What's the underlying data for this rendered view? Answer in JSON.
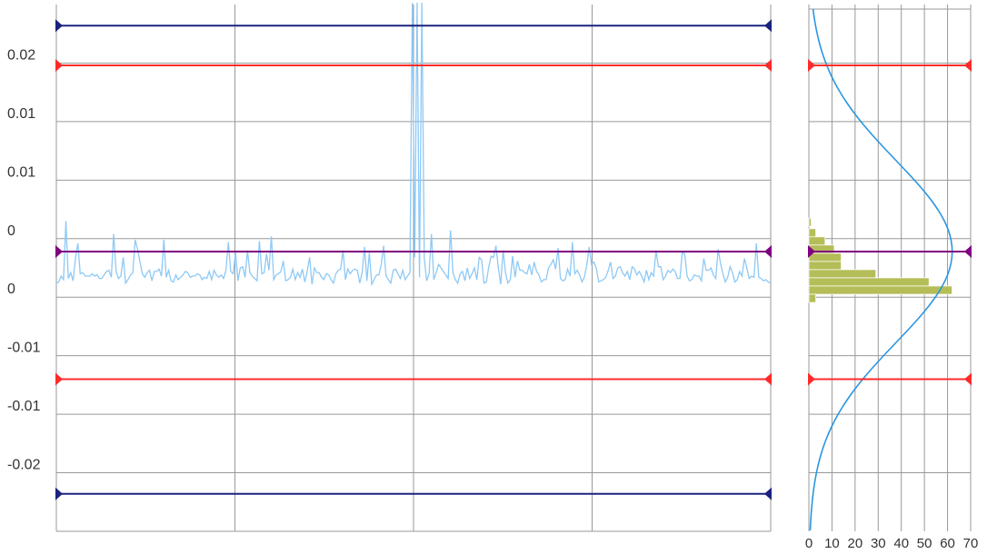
{
  "chart_data": [
    {
      "type": "line",
      "title": "",
      "xlabel": "",
      "ylabel": "",
      "ylim": [
        -0.02,
        0.025
      ],
      "y_tick_labels": [
        "0.02",
        "0.01",
        "0.01",
        "0",
        "0",
        "-0.01",
        "-0.01",
        "-0.02"
      ],
      "y_tick_values": [
        0.02,
        0.015,
        0.01,
        0.005,
        0.0,
        -0.005,
        -0.01,
        -0.015
      ],
      "grid": true,
      "grid_color": "#999999",
      "vertical_grid_fractions": [
        0.25,
        0.5,
        0.75
      ],
      "series": [
        {
          "color": "#8ec9f5",
          "values": [
            0.0012,
            0.0013,
            0.0018,
            0.0015,
            0.0065,
            0.0016,
            0.0021,
            0.0014,
            0.0033,
            0.0046,
            0.002,
            0.0021,
            0.0018,
            0.0018,
            0.0018,
            0.002,
            0.0018,
            0.0019,
            0.0016,
            0.0016,
            0.0019,
            0.0022,
            0.0023,
            0.0017,
            0.0054,
            0.0022,
            0.0016,
            0.0018,
            0.0034,
            0.0012,
            0.0015,
            0.0019,
            0.0021,
            0.0049,
            0.0041,
            0.003,
            0.002,
            0.0017,
            0.0021,
            0.0023,
            0.0014,
            0.0022,
            0.0022,
            0.0024,
            0.0018,
            0.0049,
            0.0017,
            0.0023,
            0.0014,
            0.0013,
            0.0019,
            0.0015,
            0.0017,
            0.0019,
            0.0022,
            0.0021,
            0.0017,
            0.0018,
            0.0018,
            0.002,
            0.0019,
            0.0015,
            0.0017,
            0.0016,
            0.0022,
            0.0015,
            0.0023,
            0.0019,
            0.0017,
            0.0019,
            0.0016,
            0.0023,
            0.0047,
            0.0022,
            0.002,
            0.0038,
            0.0014,
            0.0025,
            0.0026,
            0.0017,
            0.004,
            0.0021,
            0.0018,
            0.0016,
            0.0014,
            0.0048,
            0.002,
            0.0021,
            0.0037,
            0.0023,
            0.0052,
            0.0015,
            0.0019,
            0.002,
            0.0022,
            0.0031,
            0.0014,
            0.0015,
            0.0017,
            0.0024,
            0.0015,
            0.0021,
            0.0017,
            0.0024,
            0.0013,
            0.0022,
            0.0034,
            0.0011,
            0.0025,
            0.0021,
            0.0021,
            0.0017,
            0.0015,
            0.002,
            0.0019,
            0.0015,
            0.0012,
            0.002,
            0.0023,
            0.0024,
            0.004,
            0.0015,
            0.0024,
            0.002,
            0.0023,
            0.0024,
            0.0023,
            0.0012,
            0.0021,
            0.0043,
            0.0014,
            0.0038,
            0.0011,
            0.0015,
            0.0019,
            0.0019,
            0.0028,
            0.0044,
            0.0018,
            0.0015,
            0.0012,
            0.0023,
            0.0024,
            0.002,
            0.0016,
            0.0023,
            0.0015,
            0.0018,
            0.0021,
            0.0023,
            0.0034,
            0.0015,
            0.0017,
            0.0014,
            0.0033,
            0.0014,
            0.002,
            0.0054,
            0.0015,
            0.0021,
            0.0028,
            0.0025,
            0.0022,
            0.0019,
            0.0016,
            0.0057,
            0.0021,
            0.0015,
            0.0012,
            0.002,
            0.0022,
            0.0014,
            0.0025,
            0.0016,
            0.002,
            0.0025,
            0.0015,
            0.0034,
            0.0032,
            0.0012,
            0.0013,
            0.0026,
            0.0035,
            0.0034,
            0.0044,
            0.0025,
            0.0011,
            0.004,
            0.0021,
            0.0012,
            0.0015,
            0.0035,
            0.0017,
            0.0031,
            0.0023,
            0.0023,
            0.0021,
            0.002,
            0.0028,
            0.0019,
            0.003,
            0.0022,
            0.0019,
            0.0013,
            0.0015,
            0.0015,
            0.0025,
            0.0028,
            0.0032,
            0.0024,
            0.0042,
            0.0016,
            0.0014,
            0.0015,
            0.0024,
            0.0018,
            0.0047,
            0.002,
            0.0023,
            0.0019,
            0.0013,
            0.0017,
            0.0027,
            0.0043,
            0.0028,
            0.003,
            0.0025,
            0.0013,
            0.0014,
            0.0015,
            0.0017,
            0.0023,
            0.003,
            0.0016,
            0.0018,
            0.0025,
            0.0026,
            0.0021,
            0.0018,
            0.0022,
            0.0015,
            0.0026,
            0.0024,
            0.0019,
            0.0022,
            0.0018,
            0.0013,
            0.0023,
            0.0015,
            0.0021,
            0.0018,
            0.004,
            0.0026,
            0.0026,
            0.0015,
            0.0018,
            0.0023,
            0.0021,
            0.0024,
            0.0022,
            0.0016,
            0.0016,
            0.0038,
            0.0037,
            0.0018,
            0.0014,
            0.0015,
            0.0019,
            0.0018,
            0.0018,
            0.0014,
            0.0033,
            0.0023,
            0.0023,
            0.0025,
            0.0019,
            0.0016,
            0.0041,
            0.0029,
            0.002,
            0.0013,
            0.0017,
            0.0026,
            0.0021,
            0.0013,
            0.0015,
            0.0022,
            0.0018,
            0.0033,
            0.0025,
            0.0016,
            0.0018,
            0.0017,
            0.0046,
            0.0017,
            0.0016,
            0.0014,
            0.0015,
            0.0013,
            0.0012
          ],
          "spikes": [
            {
              "index": 149,
              "value": 0.028
            },
            {
              "index": 151,
              "value": 0.028
            },
            {
              "index": 153,
              "value": 0.028
            }
          ]
        }
      ],
      "reference_lines": [
        {
          "role": "upper-outer",
          "value": 0.0232,
          "color": "#1a237e",
          "marker": "triangle"
        },
        {
          "role": "upper-inner",
          "value": 0.0198,
          "color": "#ff2b2b",
          "marker": "triangle"
        },
        {
          "role": "center",
          "value": 0.0039,
          "color": "#800080",
          "marker": "triangle"
        },
        {
          "role": "lower-inner",
          "value": -0.007,
          "color": "#ff2b2b",
          "marker": "triangle"
        },
        {
          "role": "lower-outer",
          "value": -0.0168,
          "color": "#1a237e",
          "marker": "triangle"
        }
      ]
    },
    {
      "type": "bar",
      "orientation": "horizontal",
      "xlabel": "",
      "ylabel": "",
      "xlim": [
        0,
        70
      ],
      "x_tick_labels": [
        "0",
        "10",
        "20",
        "30",
        "40",
        "50",
        "60",
        "70"
      ],
      "x_tick_values": [
        0,
        10,
        20,
        30,
        40,
        50,
        60,
        70
      ],
      "grid": true,
      "bar_color": "#b5bd59",
      "bins": [
        {
          "center": 0.0064,
          "count": 1
        },
        {
          "center": 0.0055,
          "count": 3
        },
        {
          "center": 0.0048,
          "count": 7
        },
        {
          "center": 0.0041,
          "count": 11
        },
        {
          "center": 0.0034,
          "count": 14
        },
        {
          "center": 0.0027,
          "count": 14
        },
        {
          "center": 0.002,
          "count": 29
        },
        {
          "center": 0.0013,
          "count": 52
        },
        {
          "center": 0.0006,
          "count": 62
        },
        {
          "center": -0.0001,
          "count": 3
        }
      ],
      "normal_curve": {
        "color": "#2a96e0",
        "mean": 0.0039,
        "peak": 62,
        "sigma": 0.0078
      },
      "reference_lines": [
        {
          "role": "upper-inner",
          "value": 0.0198,
          "color": "#ff2b2b"
        },
        {
          "role": "center",
          "value": 0.0039,
          "color": "#800080"
        },
        {
          "role": "lower-inner",
          "value": -0.007,
          "color": "#ff2b2b"
        }
      ]
    }
  ]
}
